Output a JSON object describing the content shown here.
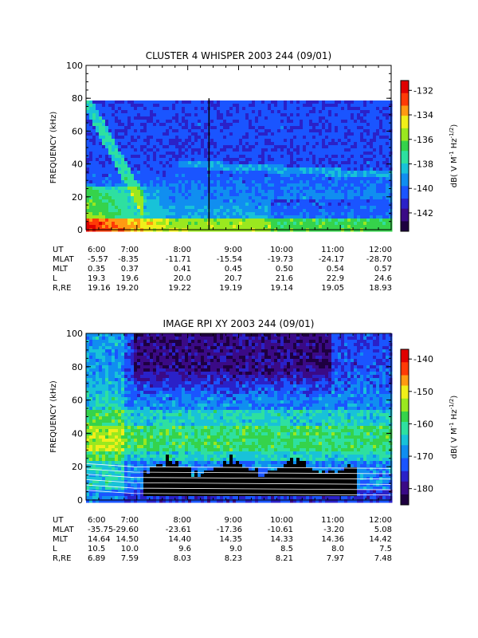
{
  "chart_data": [
    {
      "type": "heatmap",
      "title": "CLUSTER 4 WHISPER 2003 244 (09/01)",
      "ylabel": "FREQUENCY (kHz)",
      "ylim": [
        0,
        100
      ],
      "y_ticks": [
        "0",
        "20",
        "40",
        "60",
        "80",
        "100"
      ],
      "x_ticks": [
        "6:00",
        "7:00",
        "8:00",
        "9:00",
        "10:00",
        "11:00",
        "12:00"
      ],
      "data_top_frequency_khz": 80,
      "colorbar": {
        "label_main": "dB( V M",
        "label_sup1": "-1",
        "label_mid": " Hz",
        "label_sup2": "-1/2",
        "label_end": ")",
        "range": [
          -143.5,
          -131.2
        ],
        "ticks": [
          "-132",
          "-134",
          "-136",
          "-138",
          "-140",
          "-142"
        ],
        "colors": [
          "#1e0040",
          "#3a0a86",
          "#2a21c8",
          "#1a55ff",
          "#108ef0",
          "#18c2d8",
          "#2ee0a0",
          "#35d34b",
          "#9ae81f",
          "#f0ef1a",
          "#ff9a12",
          "#ff3a06",
          "#e00000"
        ]
      },
      "ephemeris": {
        "labels": [
          "UT",
          "MLAT",
          "MLT",
          "L",
          "R,RE"
        ],
        "rows": [
          [
            "6:00",
            "7:00",
            "8:00",
            "9:00",
            "10:00",
            "11:00",
            "12:00"
          ],
          [
            "-5.57",
            "-8.35",
            "-11.71",
            "-15.54",
            "-19.73",
            "-24.17",
            "-28.70"
          ],
          [
            "0.35",
            "0.37",
            "0.41",
            "0.45",
            "0.50",
            "0.54",
            "0.57"
          ],
          [
            "19.3",
            "19.6",
            "20.0",
            "20.7",
            "21.6",
            "22.9",
            "24.6"
          ],
          [
            "19.16",
            "19.20",
            "19.22",
            "19.19",
            "19.14",
            "19.05",
            "18.93"
          ]
        ]
      }
    },
    {
      "type": "heatmap",
      "title": "IMAGE RPI XY 2003 244 (09/01)",
      "ylabel": "FREQUENCY (kHz)",
      "ylim": [
        0,
        100
      ],
      "y_ticks": [
        "0",
        "20",
        "40",
        "60",
        "80",
        "100"
      ],
      "x_ticks": [
        "6:00",
        "7:00",
        "8:00",
        "9:00",
        "10:00",
        "11:00",
        "12:00"
      ],
      "colorbar": {
        "label_main": "dB( V M",
        "label_sup1": "-1",
        "label_mid": " Hz",
        "label_sup2": "-1/2",
        "label_end": ")",
        "range": [
          -185,
          -137
        ],
        "ticks": [
          "-140",
          "-150",
          "-160",
          "-170",
          "-180"
        ],
        "colors": [
          "#1e0040",
          "#3a0a86",
          "#2a21c8",
          "#1a55ff",
          "#108ef0",
          "#18c2d8",
          "#2ee0a0",
          "#35d34b",
          "#9ae81f",
          "#f0ef1a",
          "#ff9a12",
          "#ff3a06",
          "#e00000"
        ]
      },
      "ephemeris": {
        "labels": [
          "UT",
          "MLAT",
          "MLT",
          "L",
          "R,RE"
        ],
        "rows": [
          [
            "6:00",
            "7:00",
            "8:00",
            "9:00",
            "10:00",
            "11:00",
            "12:00"
          ],
          [
            "-35.75",
            "-29.60",
            "-23.61",
            "-17.36",
            "-10.61",
            "-3.20",
            "5.08"
          ],
          [
            "14.64",
            "14.50",
            "14.40",
            "14.35",
            "14.33",
            "14.36",
            "14.42"
          ],
          [
            "10.5",
            "10.0",
            "9.6",
            "9.0",
            "8.5",
            "8.0",
            "7.5"
          ],
          [
            "6.89",
            "7.59",
            "8.03",
            "8.23",
            "8.21",
            "7.97",
            "7.48"
          ]
        ]
      }
    }
  ]
}
